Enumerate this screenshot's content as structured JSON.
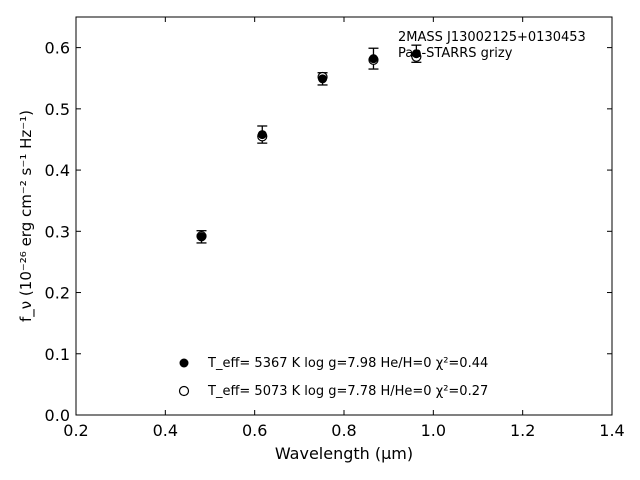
{
  "chart_data": {
    "type": "scatter",
    "xlabel": "Wavelength (μm)",
    "ylabel": "f_ν (10⁻²⁶ erg cm⁻² s⁻¹ Hz⁻¹)",
    "xlim": [
      0.2,
      1.4
    ],
    "ylim": [
      0.0,
      0.65
    ],
    "xticks": [
      "0.2",
      "0.4",
      "0.6",
      "0.8",
      "1.0",
      "1.2",
      "1.4"
    ],
    "yticks": [
      "0.0",
      "0.1",
      "0.2",
      "0.3",
      "0.4",
      "0.5",
      "0.6"
    ],
    "grid": false,
    "annotations": [
      "2MASS J13002125+0130453",
      "Pan-STARRS grizy"
    ],
    "legend": {
      "position": "bottom-center",
      "entries": [
        {
          "marker": "filled-circle",
          "label": "T_eff=  5367 K  log g=7.98  He/H=0  χ²=0.44"
        },
        {
          "marker": "open-circle",
          "label": "T_eff=  5073 K  log g=7.78  H/He=0  χ²=0.27"
        }
      ]
    },
    "series": [
      {
        "marker": "filled-circle",
        "x": [
          0.481,
          0.617,
          0.752,
          0.866,
          0.962
        ],
        "y": [
          0.291,
          0.458,
          0.549,
          0.582,
          0.59
        ],
        "yerr": [
          0.01,
          0.014,
          0.01,
          0.017,
          0.014
        ]
      },
      {
        "marker": "open-circle",
        "x": [
          0.481,
          0.617,
          0.752,
          0.866,
          0.962
        ],
        "y": [
          0.292,
          0.455,
          0.552,
          0.58,
          0.585
        ]
      }
    ]
  }
}
